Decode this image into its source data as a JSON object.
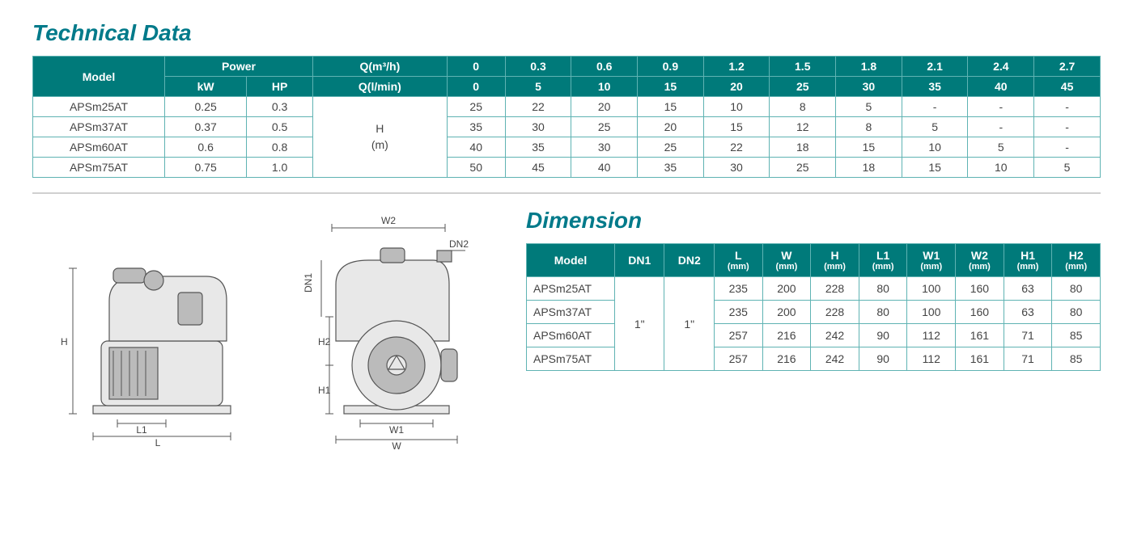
{
  "tech": {
    "title": "Technical Data",
    "headers": {
      "model": "Model",
      "power": "Power",
      "kw": "kW",
      "hp": "HP",
      "q_m3h": "Q(m³/h)",
      "q_lmin": "Q(l/min)",
      "h_m": "H\n(m)",
      "q_m3h_vals": [
        "0",
        "0.3",
        "0.6",
        "0.9",
        "1.2",
        "1.5",
        "1.8",
        "2.1",
        "2.4",
        "2.7"
      ],
      "q_lmin_vals": [
        "0",
        "5",
        "10",
        "15",
        "20",
        "25",
        "30",
        "35",
        "40",
        "45"
      ]
    },
    "rows": [
      {
        "model": "APSm25AT",
        "kw": "0.25",
        "hp": "0.3",
        "h": [
          "25",
          "22",
          "20",
          "15",
          "10",
          "8",
          "5",
          "-",
          "-",
          "-"
        ]
      },
      {
        "model": "APSm37AT",
        "kw": "0.37",
        "hp": "0.5",
        "h": [
          "35",
          "30",
          "25",
          "20",
          "15",
          "12",
          "8",
          "5",
          "-",
          "-"
        ]
      },
      {
        "model": "APSm60AT",
        "kw": "0.6",
        "hp": "0.8",
        "h": [
          "40",
          "35",
          "30",
          "25",
          "22",
          "18",
          "15",
          "10",
          "5",
          "-"
        ]
      },
      {
        "model": "APSm75AT",
        "kw": "0.75",
        "hp": "1.0",
        "h": [
          "50",
          "45",
          "40",
          "35",
          "30",
          "25",
          "18",
          "15",
          "10",
          "5"
        ]
      }
    ]
  },
  "dim": {
    "title": "Dimension",
    "headers": {
      "model": "Model",
      "dn1": "DN1",
      "dn2": "DN2",
      "l": "L",
      "w": "W",
      "h": "H",
      "l1": "L1",
      "w1": "W1",
      "w2": "W2",
      "h1": "H1",
      "h2": "H2",
      "mm": "(mm)"
    },
    "dn1": "1\"",
    "dn2": "1\"",
    "rows": [
      {
        "model": "APSm25AT",
        "l": "235",
        "w": "200",
        "h": "228",
        "l1": "80",
        "w1": "100",
        "w2": "160",
        "h1": "63",
        "h2": "80"
      },
      {
        "model": "APSm37AT",
        "l": "235",
        "w": "200",
        "h": "228",
        "l1": "80",
        "w1": "100",
        "w2": "160",
        "h1": "63",
        "h2": "80"
      },
      {
        "model": "APSm60AT",
        "l": "257",
        "w": "216",
        "h": "242",
        "l1": "90",
        "w1": "112",
        "w2": "161",
        "h1": "71",
        "h2": "85"
      },
      {
        "model": "APSm75AT",
        "l": "257",
        "w": "216",
        "h": "242",
        "l1": "90",
        "w1": "112",
        "w2": "161",
        "h1": "71",
        "h2": "85"
      }
    ]
  },
  "diagram": {
    "labels": {
      "H": "H",
      "L": "L",
      "L1": "L1",
      "W": "W",
      "W1": "W1",
      "W2": "W2",
      "H1": "H1",
      "H2": "H2",
      "DN1": "DN1",
      "DN2": "DN2"
    }
  }
}
